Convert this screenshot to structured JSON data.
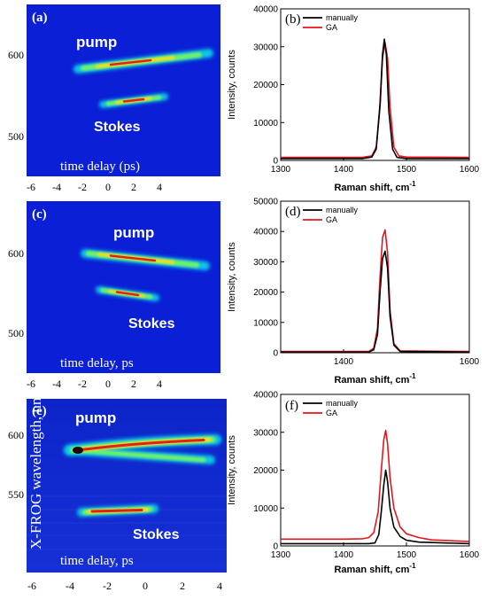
{
  "colors": {
    "manually": "#000000",
    "GA": "#e8141c",
    "frog_bg": "#0a1fd6"
  },
  "shared_ylabel": "X-FROG wavelength, nm",
  "frog_panels": [
    {
      "label": "(a)",
      "pump": "pump",
      "stokes": "Stokes",
      "time_label": "time delay (ps)",
      "xticks": [
        "-6",
        "-4",
        "-2",
        "0",
        "2",
        "4"
      ],
      "yticks": [
        "600",
        "500"
      ]
    },
    {
      "label": "(c)",
      "pump": "pump",
      "stokes": "Stokes",
      "time_label": "time delay, ps",
      "xticks": [
        "-6",
        "-4",
        "-2",
        "0",
        "2",
        "4"
      ],
      "yticks": [
        "600",
        "500"
      ]
    },
    {
      "label": "(e)",
      "pump": "pump",
      "stokes": "Stokes",
      "time_label": "time delay, ps",
      "xticks": [
        "-6",
        "-4",
        "-2",
        "0",
        "2",
        "4"
      ],
      "yticks": [
        "600",
        "550"
      ]
    }
  ],
  "chart_data": [
    {
      "type": "line",
      "label": "(b)",
      "xlabel": "Raman shift, cm",
      "xlabel_sup": "-1",
      "ylabel": "Intensity, counts",
      "xlim": [
        1300,
        1600
      ],
      "ylim": [
        0,
        40000
      ],
      "xticks": [
        "1300",
        "1400",
        "1500",
        "1600"
      ],
      "yticks": [
        "0",
        "10000",
        "20000",
        "30000",
        "40000"
      ],
      "legend": [
        "manually",
        "GA"
      ],
      "series": [
        {
          "name": "manually",
          "x": [
            1300,
            1430,
            1445,
            1452,
            1458,
            1462,
            1465,
            1468,
            1472,
            1478,
            1485,
            1500,
            1600
          ],
          "y": [
            500,
            500,
            900,
            3000,
            15000,
            28000,
            32000,
            28000,
            13000,
            3000,
            800,
            500,
            500
          ]
        },
        {
          "name": "GA",
          "x": [
            1300,
            1430,
            1445,
            1452,
            1458,
            1462,
            1466,
            1470,
            1474,
            1480,
            1488,
            1500,
            1600
          ],
          "y": [
            800,
            800,
            1200,
            3500,
            14000,
            27000,
            31000,
            27000,
            14000,
            3500,
            1200,
            900,
            800
          ]
        }
      ]
    },
    {
      "type": "line",
      "label": "(d)",
      "xlabel": "Raman shift, cm",
      "xlabel_sup": "-1",
      "ylabel": "Intensity, counts",
      "xlim": [
        1300,
        1600
      ],
      "ylim": [
        0,
        50000
      ],
      "xticks": [
        "1400",
        "1600"
      ],
      "yticks": [
        "0",
        "10000",
        "20000",
        "30000",
        "40000",
        "50000"
      ],
      "legend": [
        "manually",
        "GA"
      ],
      "series": [
        {
          "name": "manually",
          "x": [
            1300,
            1440,
            1448,
            1454,
            1458,
            1462,
            1466,
            1470,
            1474,
            1480,
            1490,
            1600
          ],
          "y": [
            200,
            200,
            1000,
            6000,
            20000,
            31000,
            33500,
            28000,
            12000,
            2500,
            400,
            200
          ]
        },
        {
          "name": "GA",
          "x": [
            1300,
            1440,
            1448,
            1454,
            1458,
            1462,
            1466,
            1470,
            1474,
            1480,
            1490,
            1600
          ],
          "y": [
            400,
            400,
            1500,
            8000,
            25000,
            38000,
            40500,
            33000,
            14000,
            3000,
            600,
            400
          ]
        }
      ]
    },
    {
      "type": "line",
      "label": "(f)",
      "xlabel": "Raman shift, cm",
      "xlabel_sup": "-1",
      "ylabel": "Intensity, counts",
      "xlim": [
        1300,
        1600
      ],
      "ylim": [
        0,
        40000
      ],
      "xticks": [
        "1300",
        "1400",
        "1500",
        "1600"
      ],
      "yticks": [
        "0",
        "10000",
        "20000",
        "30000",
        "40000"
      ],
      "legend": [
        "manually",
        "GA"
      ],
      "series": [
        {
          "name": "manually",
          "x": [
            1300,
            1440,
            1450,
            1456,
            1460,
            1464,
            1467,
            1470,
            1474,
            1480,
            1490,
            1500,
            1520,
            1600
          ],
          "y": [
            600,
            600,
            800,
            3000,
            9000,
            16000,
            20000,
            17000,
            10000,
            5000,
            2500,
            1500,
            1000,
            600
          ]
        },
        {
          "name": "GA",
          "x": [
            1300,
            1400,
            1430,
            1440,
            1448,
            1455,
            1460,
            1464,
            1467,
            1470,
            1474,
            1480,
            1490,
            1500,
            1520,
            1540,
            1600
          ],
          "y": [
            1800,
            1800,
            1900,
            2200,
            3500,
            9000,
            20000,
            28000,
            30500,
            27000,
            18000,
            10000,
            5000,
            3200,
            2200,
            1600,
            1200
          ]
        }
      ]
    }
  ]
}
